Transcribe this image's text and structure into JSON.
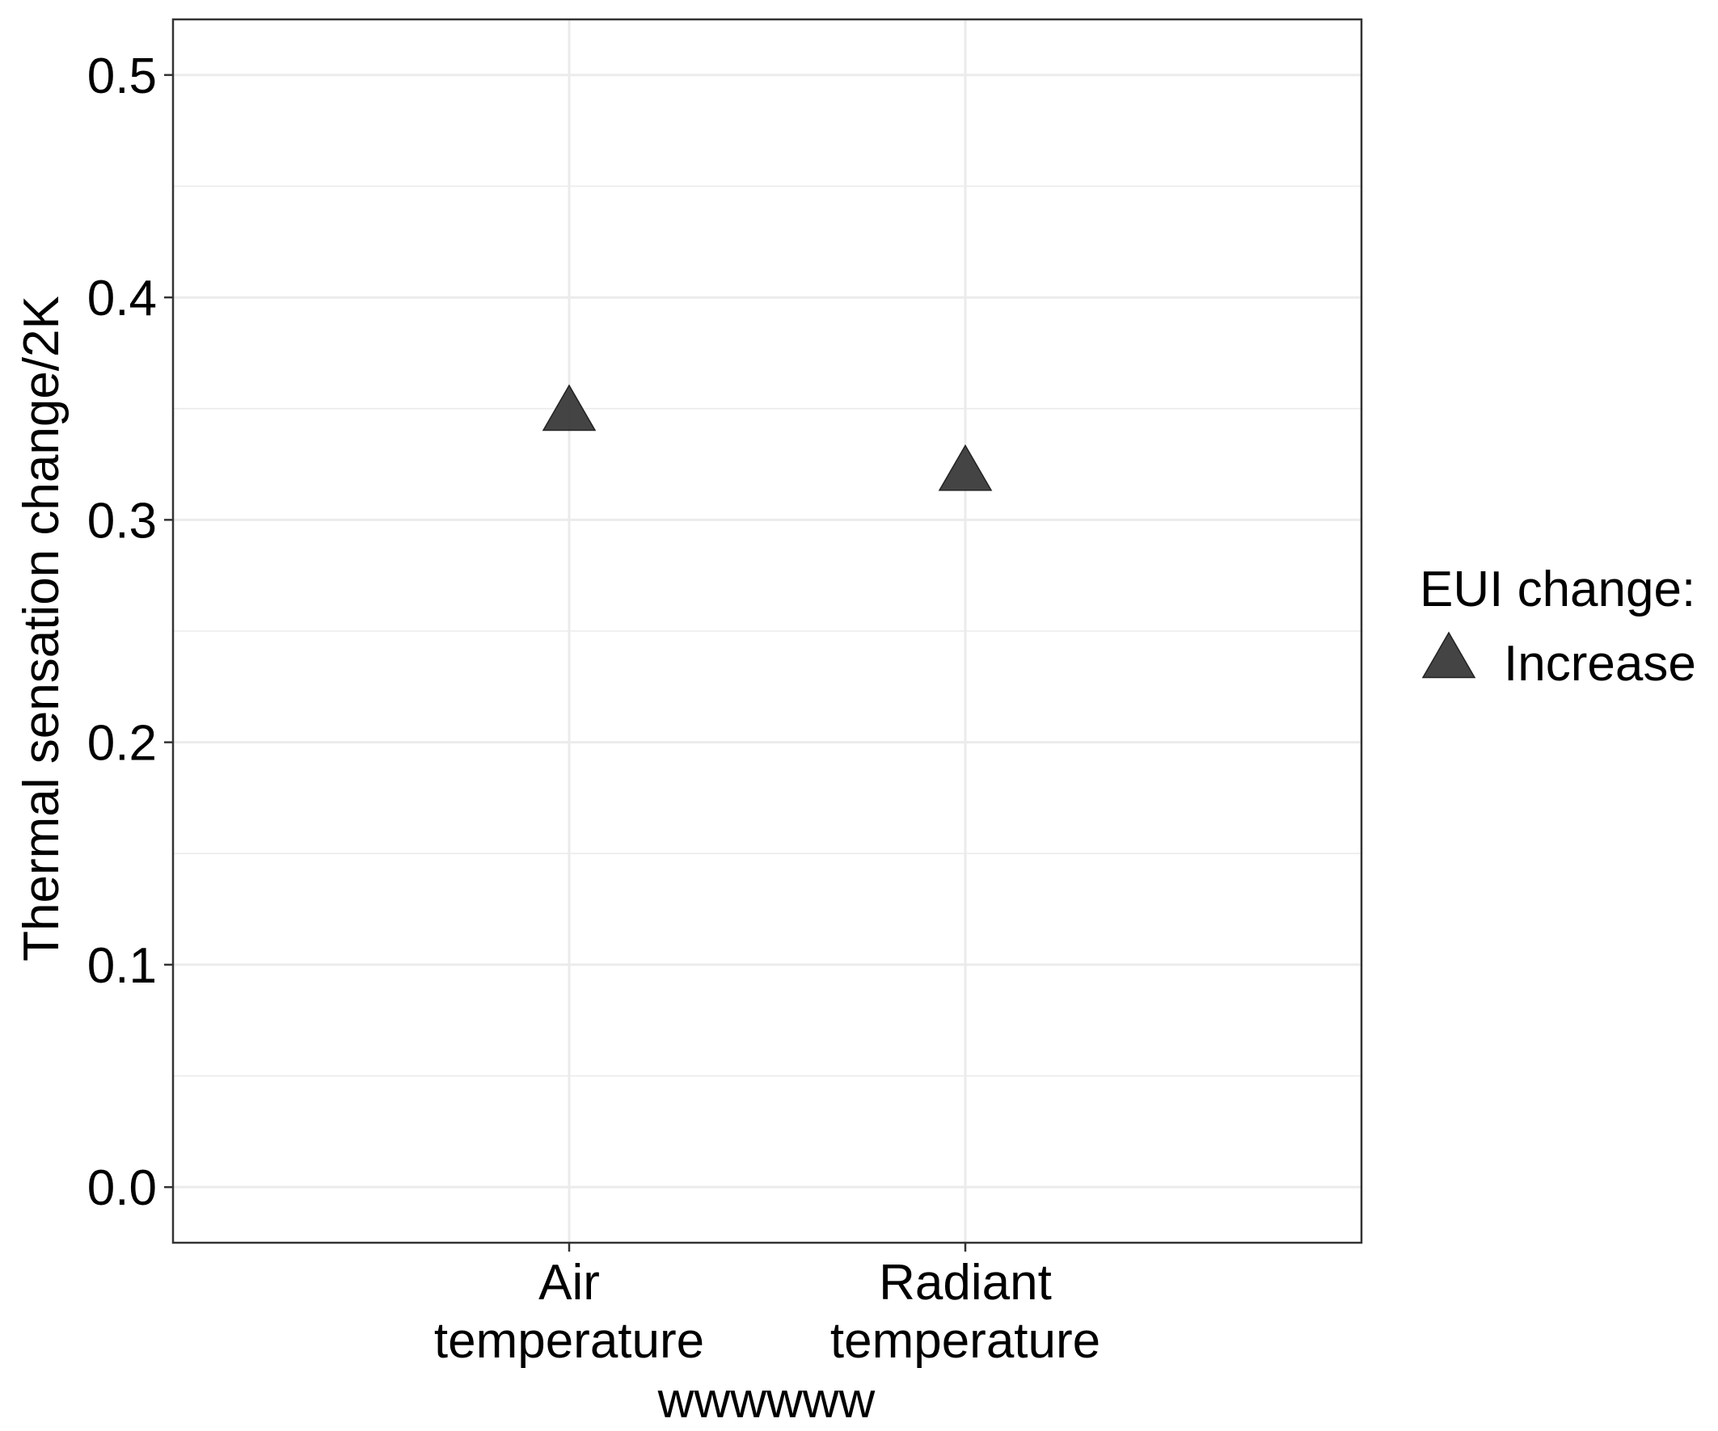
{
  "chart_data": {
    "type": "scatter",
    "xlabel": "wwwwww",
    "ylabel": "Thermal sensation change/2K",
    "ylim": [
      -0.025,
      0.525
    ],
    "y_ticks": [
      "0.0",
      "0.1",
      "0.2",
      "0.3",
      "0.4",
      "0.5"
    ],
    "categories": [
      {
        "line1": "Air",
        "line2": "temperature"
      },
      {
        "line1": "Radiant",
        "line2": "temperature"
      }
    ],
    "series": [
      {
        "name": "Increase",
        "marker": "triangle",
        "color": "#3a3a3a",
        "points": [
          {
            "x": "Air temperature",
            "y": 0.347
          },
          {
            "x": "Radiant temperature",
            "y": 0.32
          }
        ]
      }
    ],
    "legend": {
      "title": "EUI change:",
      "position": "right",
      "items": [
        {
          "label": "Increase",
          "marker": "triangle"
        }
      ]
    },
    "grid": true,
    "colors": {
      "grid": "#ebebeb",
      "panel_border": "#333333",
      "marker_fill": "#3a3a3a"
    }
  }
}
